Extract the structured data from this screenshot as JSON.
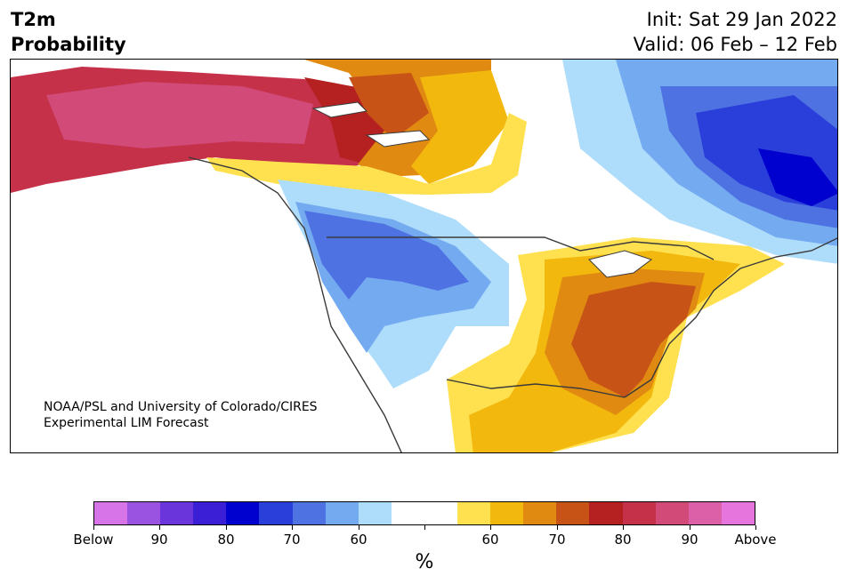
{
  "header": {
    "title_line1": "T2m",
    "title_line2": "Probability",
    "init": "Init: Sat 29 Jan 2022",
    "valid": "Valid: 06 Feb – 12 Feb"
  },
  "map": {
    "credit_line1": "NOAA/PSL and University of Colorado/CIRES",
    "credit_line2": "Experimental LIM Forecast",
    "colors": {
      "below_80": "#3a1fd6",
      "below_70": "#2a3fd9",
      "below_65": "#4f72e3",
      "below_60": "#74aaf0",
      "below_55": "#aedcfb",
      "neutral": "#ffffff",
      "above_55": "#ffe14f",
      "above_60": "#f3b80e",
      "above_65": "#e08a12",
      "above_70": "#c85316",
      "above_75": "#b52020",
      "above_80": "#c6314a",
      "above_85": "#d24a78",
      "land_border": "#3a3a3a"
    }
  },
  "colorbar": {
    "unit": "%",
    "colors": [
      "#d774e8",
      "#9a52e0",
      "#6a35da",
      "#3a1fd6",
      "#0000cf",
      "#2a3fd9",
      "#4f72e3",
      "#74aaf0",
      "#aedcfb",
      "#ffffff",
      "#ffffff",
      "#ffe14f",
      "#f3b80e",
      "#e08a12",
      "#c85316",
      "#b52020",
      "#c6314a",
      "#d24a78",
      "#db60a8",
      "#e676dd"
    ],
    "tick_labels": [
      "Below",
      "90",
      "80",
      "70",
      "60",
      "",
      "60",
      "70",
      "80",
      "90",
      "Above"
    ]
  }
}
